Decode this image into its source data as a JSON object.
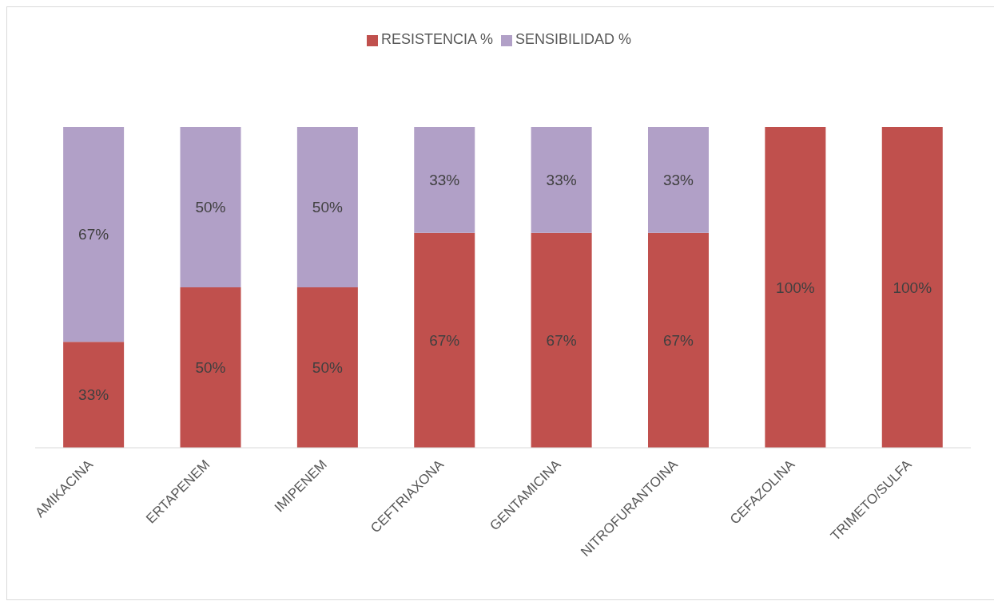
{
  "chart_data": {
    "type": "bar",
    "stacked": true,
    "legend": "top",
    "grid": false,
    "categories": [
      "AMIKACINA",
      "ERTAPENEM",
      "IMIPENEM",
      "CEFTRIAXONA",
      "GENTAMICINA",
      "NITROFURANTOINA",
      "CEFAZOLINA",
      "TRIMETO/SULFA"
    ],
    "series": [
      {
        "name": "RESISTENCIA %",
        "color": "#c0504d",
        "values": [
          33,
          50,
          50,
          67,
          67,
          67,
          100,
          100
        ],
        "value_labels": [
          "33%",
          "50%",
          "50%",
          "67%",
          "67%",
          "67%",
          "100%",
          "100%"
        ]
      },
      {
        "name": "SENSIBILIDAD %",
        "color": "#b1a0c7",
        "values": [
          67,
          50,
          50,
          33,
          33,
          33,
          0,
          0
        ],
        "value_labels": [
          "67%",
          "50%",
          "50%",
          "33%",
          "33%",
          "33%",
          null,
          null
        ]
      }
    ]
  }
}
